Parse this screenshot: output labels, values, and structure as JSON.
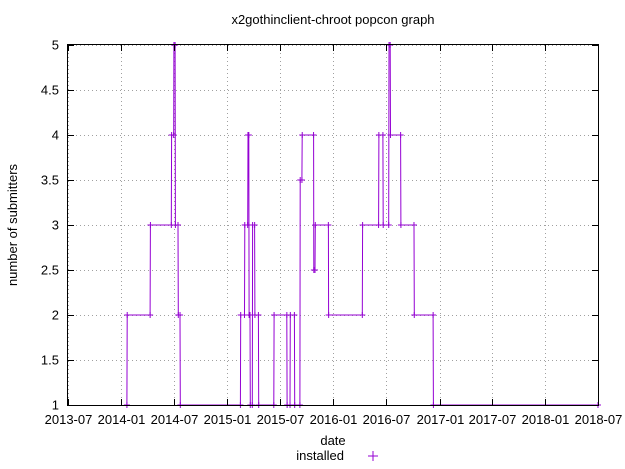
{
  "chart_data": {
    "type": "line",
    "title": "x2gothinclient-chroot popcon graph",
    "xlabel": "date",
    "ylabel": "number of submitters",
    "x_ticks": [
      "2013-07",
      "2014-01",
      "2014-07",
      "2015-01",
      "2015-07",
      "2016-01",
      "2016-07",
      "2017-01",
      "2017-07",
      "2018-01",
      "2018-07"
    ],
    "y_ticks": [
      "1",
      "1.5",
      "2",
      "2.5",
      "3",
      "3.5",
      "4",
      "4.5",
      "5"
    ],
    "xlim": [
      "2013-07",
      "2018-07"
    ],
    "ylim": [
      1,
      5
    ],
    "grid": true,
    "legend_position": "bottom-center",
    "series": [
      {
        "name": "installed",
        "color": "#9400d3",
        "points": [
          [
            "2014-01-20",
            1
          ],
          [
            "2014-01-21",
            2
          ],
          [
            "2014-04-10",
            2
          ],
          [
            "2014-04-11",
            3
          ],
          [
            "2014-06-22",
            3
          ],
          [
            "2014-06-23",
            4
          ],
          [
            "2014-06-30",
            4
          ],
          [
            "2014-07-01",
            5
          ],
          [
            "2014-07-05",
            5
          ],
          [
            "2014-07-06",
            3
          ],
          [
            "2014-07-15",
            3
          ],
          [
            "2014-07-16",
            2
          ],
          [
            "2014-07-22",
            2
          ],
          [
            "2014-07-23",
            1
          ],
          [
            "2015-02-15",
            1
          ],
          [
            "2015-02-16",
            2
          ],
          [
            "2015-03-01",
            2
          ],
          [
            "2015-03-02",
            3
          ],
          [
            "2015-03-12",
            3
          ],
          [
            "2015-03-13",
            4
          ],
          [
            "2015-03-16",
            4
          ],
          [
            "2015-03-17",
            2
          ],
          [
            "2015-03-20",
            2
          ],
          [
            "2015-03-21",
            1
          ],
          [
            "2015-03-28",
            1
          ],
          [
            "2015-03-29",
            3
          ],
          [
            "2015-04-05",
            3
          ],
          [
            "2015-04-06",
            2
          ],
          [
            "2015-04-18",
            2
          ],
          [
            "2015-04-19",
            1
          ],
          [
            "2015-06-10",
            1
          ],
          [
            "2015-06-11",
            2
          ],
          [
            "2015-07-25",
            2
          ],
          [
            "2015-07-26",
            1
          ],
          [
            "2015-08-05",
            1
          ],
          [
            "2015-08-06",
            2
          ],
          [
            "2015-08-20",
            2
          ],
          [
            "2015-08-21",
            1
          ],
          [
            "2015-09-08",
            1
          ],
          [
            "2015-09-09",
            3.5
          ],
          [
            "2015-09-15",
            3.5
          ],
          [
            "2015-09-16",
            4
          ],
          [
            "2015-10-25",
            4
          ],
          [
            "2015-10-26",
            2.5
          ],
          [
            "2015-10-30",
            2.5
          ],
          [
            "2015-10-31",
            3
          ],
          [
            "2015-12-15",
            3
          ],
          [
            "2015-12-16",
            2
          ],
          [
            "2016-04-10",
            2
          ],
          [
            "2016-04-11",
            3
          ],
          [
            "2016-06-05",
            3
          ],
          [
            "2016-06-06",
            4
          ],
          [
            "2016-06-20",
            4
          ],
          [
            "2016-06-21",
            3
          ],
          [
            "2016-07-10",
            3
          ],
          [
            "2016-07-11",
            5
          ],
          [
            "2016-07-15",
            5
          ],
          [
            "2016-07-16",
            4
          ],
          [
            "2016-08-20",
            4
          ],
          [
            "2016-08-21",
            3
          ],
          [
            "2016-10-05",
            3
          ],
          [
            "2016-10-06",
            2
          ],
          [
            "2016-12-10",
            2
          ],
          [
            "2016-12-11",
            1
          ],
          [
            "2018-07-01",
            1
          ]
        ]
      }
    ]
  }
}
